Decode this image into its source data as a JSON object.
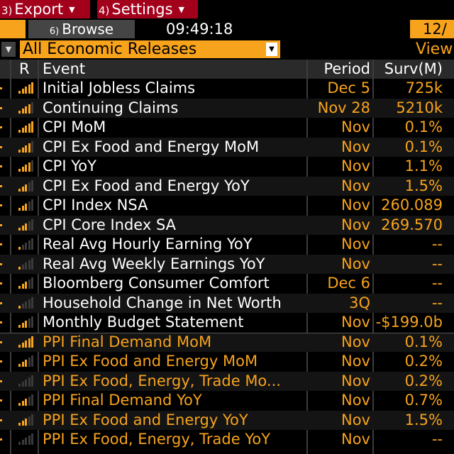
{
  "menubar": {
    "export": {
      "num": "3)",
      "label": "Export"
    },
    "settings": {
      "num": "4)",
      "label": "Settings"
    }
  },
  "toolbar": {
    "browse": {
      "num": "6)",
      "label": "Browse"
    },
    "clock": "09:49:18",
    "date": "12/"
  },
  "filter": {
    "selected": "All Economic Releases",
    "view_label": "View"
  },
  "columns": {
    "r": "R",
    "event": "Event",
    "period": "Period",
    "survey": "Surv(M)"
  },
  "colors": {
    "accent": "#f7a31c",
    "menu_red": "#a3001c",
    "bar_dim": "#3a3a3a"
  },
  "rows": [
    {
      "event": "Initial Jobless Claims",
      "period": "Dec 5",
      "survey": "725k",
      "relevance": 5,
      "group": "main"
    },
    {
      "event": "Continuing Claims",
      "period": "Nov 28",
      "survey": "5210k",
      "relevance": 4,
      "group": "main"
    },
    {
      "event": "CPI MoM",
      "period": "Nov",
      "survey": "0.1%",
      "relevance": 5,
      "group": "main"
    },
    {
      "event": "CPI Ex Food and Energy MoM",
      "period": "Nov",
      "survey": "0.1%",
      "relevance": 4,
      "group": "main"
    },
    {
      "event": "CPI YoY",
      "period": "Nov",
      "survey": "1.1%",
      "relevance": 4,
      "group": "main"
    },
    {
      "event": "CPI Ex Food and Energy YoY",
      "period": "Nov",
      "survey": "1.5%",
      "relevance": 3,
      "group": "main"
    },
    {
      "event": "CPI Index NSA",
      "period": "Nov",
      "survey": "260.089",
      "relevance": 3,
      "group": "main"
    },
    {
      "event": "CPI Core Index SA",
      "period": "Nov",
      "survey": "269.570",
      "relevance": 3,
      "group": "main"
    },
    {
      "event": "Real Avg Hourly Earning YoY",
      "period": "Nov",
      "survey": "--",
      "relevance": 1,
      "group": "main"
    },
    {
      "event": "Real Avg Weekly Earnings YoY",
      "period": "Nov",
      "survey": "--",
      "relevance": 1,
      "group": "main"
    },
    {
      "event": "Bloomberg Consumer Comfort",
      "period": "Dec 6",
      "survey": "--",
      "relevance": 3,
      "group": "main"
    },
    {
      "event": "Household Change in Net Worth",
      "period": "3Q",
      "survey": "--",
      "relevance": 1,
      "group": "main"
    },
    {
      "event": "Monthly Budget Statement",
      "period": "Nov",
      "survey": "-$199.0b",
      "relevance": 3,
      "group": "main"
    },
    {
      "event": "PPI Final Demand MoM",
      "period": "Nov",
      "survey": "0.1%",
      "relevance": 5,
      "group": "ppi"
    },
    {
      "event": "PPI Ex Food and Energy MoM",
      "period": "Nov",
      "survey": "0.2%",
      "relevance": 3,
      "group": "ppi"
    },
    {
      "event": "PPI Ex Food, Energy, Trade Mo...",
      "period": "Nov",
      "survey": "0.2%",
      "relevance": 0,
      "group": "ppi"
    },
    {
      "event": "PPI Final Demand YoY",
      "period": "Nov",
      "survey": "0.7%",
      "relevance": 3,
      "group": "ppi"
    },
    {
      "event": "PPI Ex Food and Energy YoY",
      "period": "Nov",
      "survey": "1.5%",
      "relevance": 3,
      "group": "ppi"
    },
    {
      "event": "PPI Ex Food, Energy, Trade YoY",
      "period": "Nov",
      "survey": "--",
      "relevance": 0,
      "group": "ppi"
    }
  ]
}
